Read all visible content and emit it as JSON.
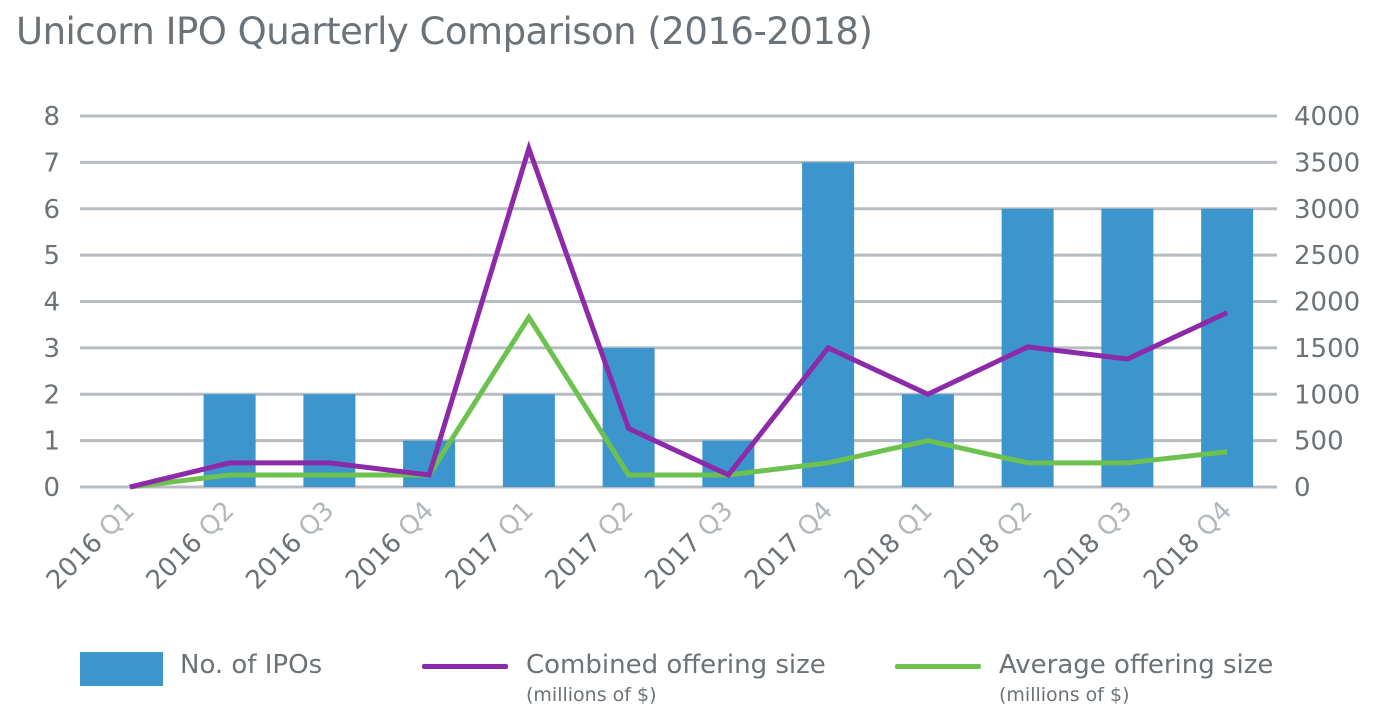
{
  "title": "Unicorn IPO Quarterly Comparison (2016-2018)",
  "colors": {
    "bar": "#3d95cd",
    "combined": "#8c2aa9",
    "average": "#6cc14f",
    "grid": "#b7bcc0",
    "text": "#6b7278",
    "quarter_text": "#b3b8bc"
  },
  "chart_data": {
    "type": "bar",
    "title": "Unicorn IPO Quarterly Comparison (2016-2018)",
    "categories": [
      {
        "year": "2016",
        "quarter": "Q1"
      },
      {
        "year": "2016",
        "quarter": "Q2"
      },
      {
        "year": "2016",
        "quarter": "Q3"
      },
      {
        "year": "2016",
        "quarter": "Q4"
      },
      {
        "year": "2017",
        "quarter": "Q1"
      },
      {
        "year": "2017",
        "quarter": "Q2"
      },
      {
        "year": "2017",
        "quarter": "Q3"
      },
      {
        "year": "2017",
        "quarter": "Q4"
      },
      {
        "year": "2018",
        "quarter": "Q1"
      },
      {
        "year": "2018",
        "quarter": "Q2"
      },
      {
        "year": "2018",
        "quarter": "Q3"
      },
      {
        "year": "2018",
        "quarter": "Q4"
      }
    ],
    "left_axis": {
      "min": 0,
      "max": 8,
      "ticks": [
        "0",
        "1",
        "2",
        "3",
        "4",
        "5",
        "6",
        "7",
        "8"
      ]
    },
    "right_axis": {
      "min": 0,
      "max": 4000,
      "ticks": [
        "0",
        "500",
        "1000",
        "1500",
        "2000",
        "2500",
        "3000",
        "3500",
        "4000"
      ]
    },
    "grid": true,
    "legend_position": "bottom",
    "series": [
      {
        "name": "No. of IPOs",
        "type": "bar",
        "axis": "left",
        "values": [
          0,
          2,
          2,
          1,
          2,
          3,
          1,
          7,
          2,
          6,
          6,
          6
        ]
      },
      {
        "name": "Combined offering size",
        "sub": "(millions of $)",
        "type": "line",
        "axis": "right",
        "values": [
          0,
          260,
          260,
          130,
          3650,
          630,
          130,
          1500,
          1000,
          1510,
          1380,
          1880
        ]
      },
      {
        "name": "Average offering size",
        "sub": "(millions of $)",
        "type": "line",
        "axis": "right",
        "values": [
          0,
          130,
          130,
          130,
          1830,
          130,
          130,
          260,
          500,
          260,
          260,
          380
        ]
      }
    ]
  }
}
